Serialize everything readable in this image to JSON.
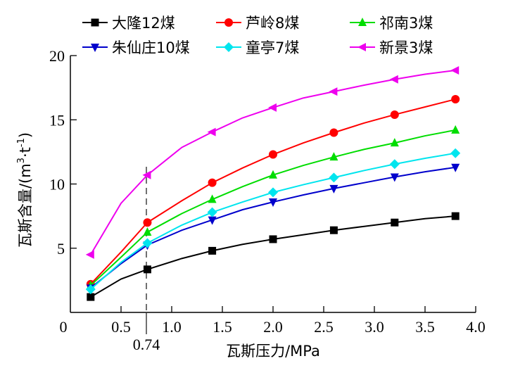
{
  "chart_data": {
    "type": "line",
    "title": "",
    "xlabel": "瓦斯压力/MPa",
    "ylabel_parts": {
      "main": "瓦斯含量/(m",
      "sup1": "3",
      "mid": "·t",
      "sup2": "-1",
      "end": ")"
    },
    "xlim": [
      0,
      4.0
    ],
    "ylim": [
      0,
      20
    ],
    "x_ticks": [
      0,
      0.5,
      1.0,
      1.5,
      2.0,
      2.5,
      3.0,
      3.5,
      4.0
    ],
    "x_tick_labels": [
      "0",
      "0.5",
      "1.0",
      "1.5",
      "2.0",
      "2.5",
      "3.0",
      "3.5",
      "4.0"
    ],
    "y_ticks": [
      5,
      10,
      15,
      20
    ],
    "y_tick_labels": [
      "5",
      "10",
      "15",
      "20"
    ],
    "grid": false,
    "legend_position": "top",
    "annotation": {
      "x": 0.74,
      "label": "0.74",
      "style": "dashed vertical line"
    },
    "x": [
      0.2,
      0.5,
      0.76,
      1.1,
      1.4,
      1.7,
      2.0,
      2.3,
      2.6,
      2.9,
      3.2,
      3.5,
      3.8
    ],
    "marker_x": [
      0.2,
      0.76,
      1.4,
      2.0,
      2.6,
      3.2,
      3.8
    ],
    "series": [
      {
        "name": "大隆12煤",
        "color": "#000000",
        "marker": "square",
        "values": [
          1.2,
          2.6,
          3.35,
          4.2,
          4.8,
          5.3,
          5.7,
          6.05,
          6.4,
          6.7,
          7.0,
          7.3,
          7.5
        ]
      },
      {
        "name": "芦岭8煤",
        "color": "#ff0000",
        "marker": "circle",
        "values": [
          2.2,
          4.7,
          7.0,
          8.7,
          10.1,
          11.25,
          12.3,
          13.2,
          14.0,
          14.75,
          15.4,
          16.0,
          16.6
        ]
      },
      {
        "name": "祁南3煤",
        "color": "#00dd00",
        "marker": "triangle-up",
        "values": [
          2.1,
          4.3,
          6.25,
          7.7,
          8.8,
          9.8,
          10.7,
          11.45,
          12.1,
          12.7,
          13.2,
          13.75,
          14.2
        ]
      },
      {
        "name": "朱仙庄10煤",
        "color": "#0000cc",
        "marker": "triangle-down",
        "values": [
          1.9,
          3.8,
          5.25,
          6.4,
          7.2,
          8.0,
          8.6,
          9.15,
          9.65,
          10.1,
          10.55,
          10.95,
          11.3
        ]
      },
      {
        "name": "童亭7煤",
        "color": "#00e5ee",
        "marker": "diamond",
        "values": [
          1.8,
          3.9,
          5.4,
          6.8,
          7.8,
          8.6,
          9.35,
          9.95,
          10.5,
          11.05,
          11.55,
          12.0,
          12.4
        ]
      },
      {
        "name": "新景3煤",
        "color": "#ee00ee",
        "marker": "triangle-left",
        "values": [
          4.5,
          8.5,
          10.7,
          12.85,
          14.05,
          15.15,
          15.95,
          16.7,
          17.2,
          17.7,
          18.15,
          18.55,
          18.85
        ]
      }
    ]
  }
}
